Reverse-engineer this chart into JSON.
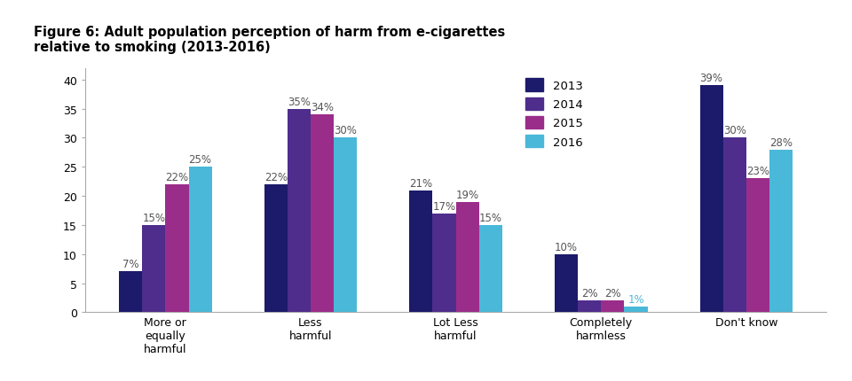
{
  "title_line1": "Figure 6: Adult population perception of harm from e-cigarettes",
  "title_line2": "relative to smoking (2013-2016)",
  "categories": [
    "More or\nequally\nharmful",
    "Less\nharmful",
    "Lot Less\nharmful",
    "Completely\nharmless",
    "Don't know"
  ],
  "years": [
    "2013",
    "2014",
    "2015",
    "2016"
  ],
  "values": {
    "2013": [
      7,
      22,
      21,
      10,
      39
    ],
    "2014": [
      15,
      35,
      17,
      2,
      30
    ],
    "2015": [
      22,
      34,
      19,
      2,
      23
    ],
    "2016": [
      25,
      30,
      15,
      1,
      28
    ]
  },
  "colors": {
    "2013": "#1c1a6b",
    "2014": "#4e2d8c",
    "2015": "#9b2d8a",
    "2016": "#4ab8d8"
  },
  "ylim": [
    0,
    42
  ],
  "yticks": [
    0,
    5,
    10,
    15,
    20,
    25,
    30,
    35,
    40
  ],
  "bar_width": 0.16,
  "label_fontsize": 8.5,
  "title_fontsize": 10.5,
  "legend_fontsize": 9.5,
  "tick_fontsize": 9,
  "background_color": "#ffffff",
  "label_color_default": "#555555",
  "label_color_cyan": "#4ab8d8"
}
